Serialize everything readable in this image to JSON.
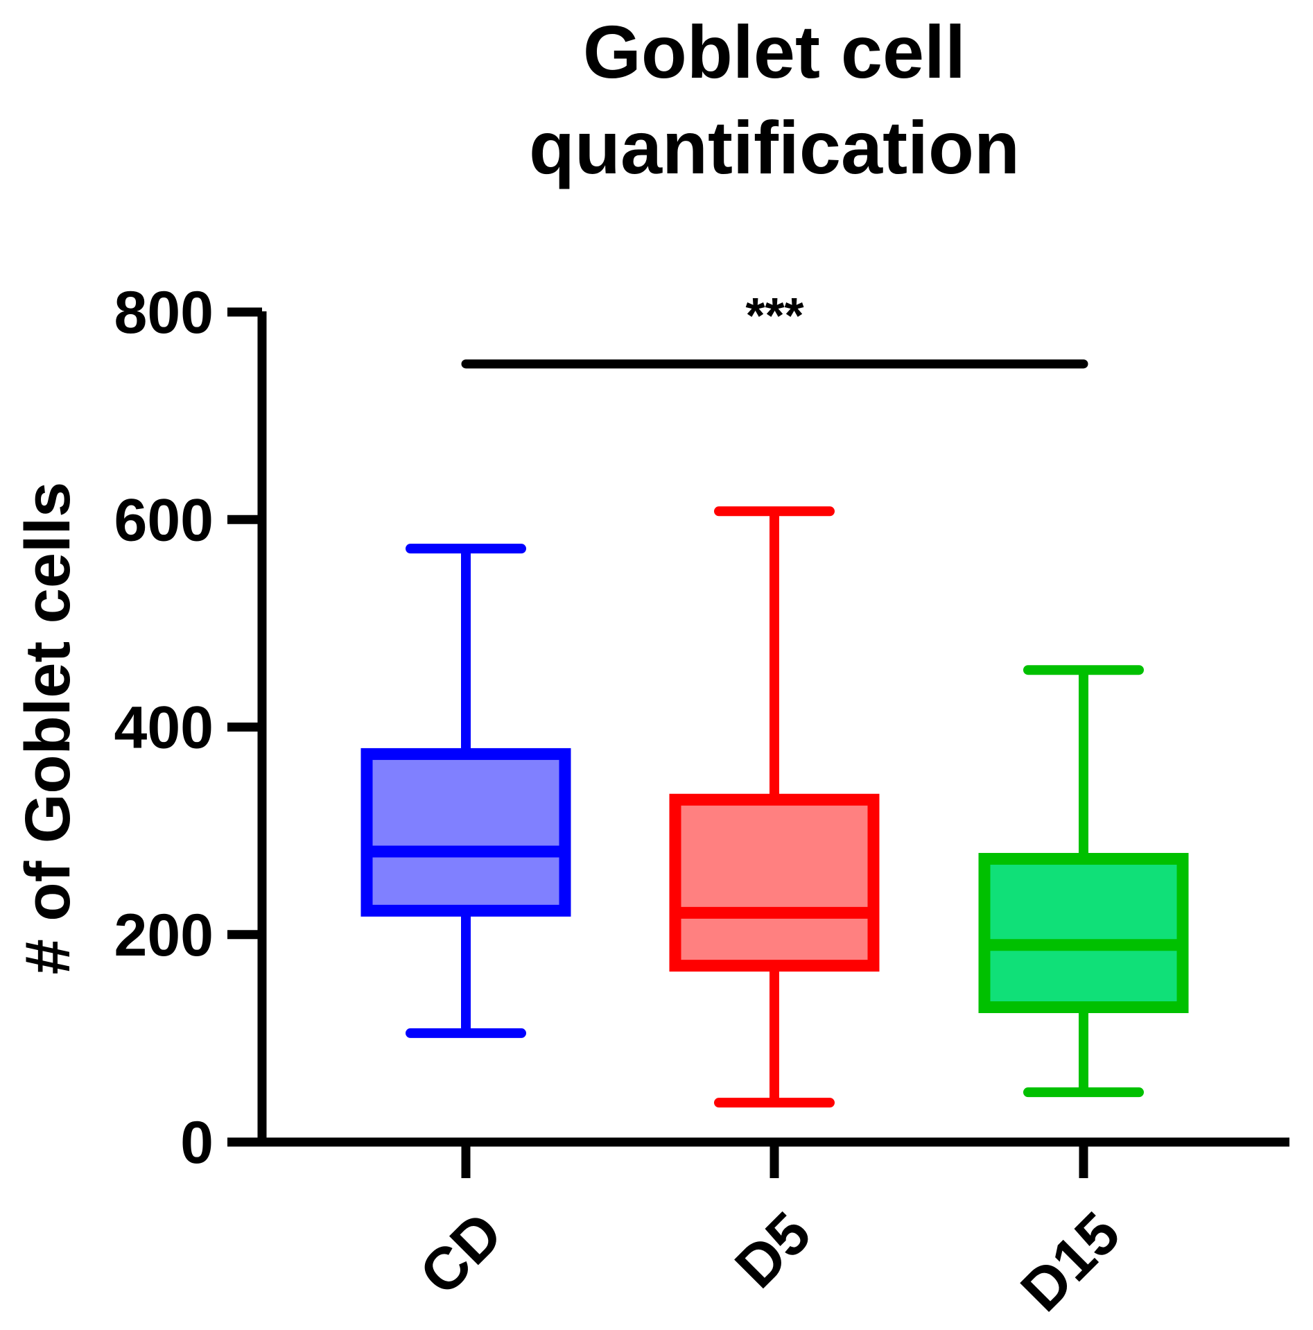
{
  "chart_data": {
    "type": "box",
    "title": [
      "Goblet cell",
      "quantification"
    ],
    "ylabel": "# of Goblet cells",
    "xlabel": "",
    "ylim": [
      0,
      800
    ],
    "yticks": [
      0,
      200,
      400,
      600,
      800
    ],
    "categories": [
      "CD",
      "D5",
      "D15"
    ],
    "boxes": [
      {
        "category": "CD",
        "min": 105,
        "q1": 223,
        "median": 280,
        "q3": 374,
        "max": 572,
        "stroke": "#0000ff",
        "fill": "#8080ff"
      },
      {
        "category": "D5",
        "min": 38,
        "q1": 170,
        "median": 221,
        "q3": 330,
        "max": 608,
        "stroke": "#ff0000",
        "fill": "#ff8080"
      },
      {
        "category": "D15",
        "min": 48,
        "q1": 130,
        "median": 190,
        "q3": 273,
        "max": 455,
        "stroke": "#00c000",
        "fill": "#10e078"
      }
    ],
    "significance": {
      "from": "CD",
      "to": "D15",
      "y": 750,
      "label": "***"
    },
    "grid": false,
    "legend": "none"
  }
}
